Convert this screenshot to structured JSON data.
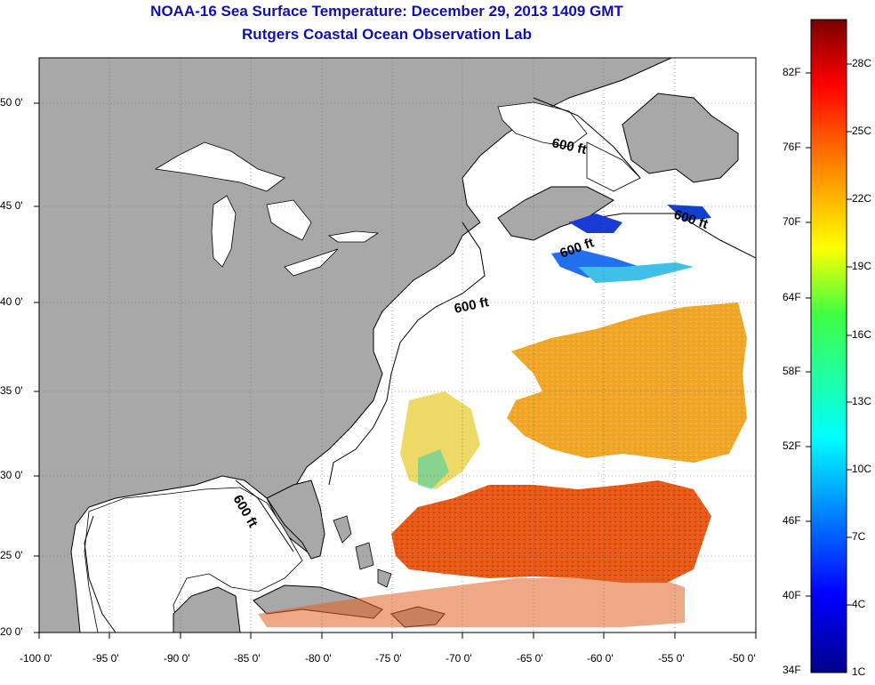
{
  "title_line1": "NOAA-16 Sea Surface Temperature:  December 29, 2013 1409 GMT",
  "title_line2": "Rutgers Coastal Ocean Observation Lab",
  "lon_ticks": [
    "-100 0'",
    "-95 0'",
    "-90 0'",
    "-85 0'",
    "-80 0'",
    "-75 0'",
    "-70 0'",
    "-65 0'",
    "-60 0'",
    "-55 0'",
    "-50 0'"
  ],
  "lat_ticks": [
    "50 0'",
    "45 0'",
    "40 0'",
    "35 0'",
    "30 0'",
    "25 0'",
    "20 0'"
  ],
  "isobath_labels": [
    "600 ft",
    "600 ft",
    "600 ft",
    "600 ft",
    "600 ft"
  ],
  "colorbar": {
    "fahrenheit": [
      "82F",
      "76F",
      "70F",
      "64F",
      "58F",
      "52F",
      "46F",
      "40F",
      "34F"
    ],
    "celsius": [
      "28C",
      "25C",
      "22C",
      "19C",
      "16C",
      "13C",
      "10C",
      "7C",
      "4C",
      "1C"
    ]
  },
  "colors": {
    "title": "#1010b0",
    "land": "#a8a8a8",
    "ocean": "#ffffff",
    "warm": "#e84010",
    "mild": "#f0a020",
    "cool": "#1040e0"
  }
}
